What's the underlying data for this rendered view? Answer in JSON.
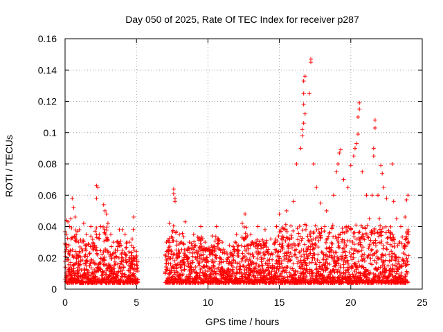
{
  "chart_data": {
    "type": "scatter",
    "title": "Day 050 of 2025, Rate Of TEC Index for receiver p287",
    "xlabel": "GPS time / hours",
    "ylabel": "ROTI / TECUs",
    "xlim": [
      0,
      25
    ],
    "ylim": [
      0,
      0.16
    ],
    "xticks": [
      0,
      5,
      10,
      15,
      20,
      25
    ],
    "yticks": [
      0,
      0.02,
      0.04,
      0.06,
      0.08,
      0.1,
      0.12,
      0.14,
      0.16
    ],
    "xtick_labels": [
      "0",
      "5",
      "10",
      "15",
      "20",
      "25"
    ],
    "ytick_labels": [
      "0",
      "0.02",
      "0.04",
      "0.06",
      "0.08",
      "0.1",
      "0.12",
      "0.14",
      "0.16"
    ],
    "grid": true,
    "marker": "+",
    "color": "#ff0000",
    "data_gaps_hours": [
      [
        5.1,
        7.0
      ]
    ],
    "series": [
      {
        "name": "ROTI",
        "points": [
          [
            0.1,
            0.044
          ],
          [
            0.2,
            0.043
          ],
          [
            0.3,
            0.04
          ],
          [
            0.4,
            0.045
          ],
          [
            0.5,
            0.058
          ],
          [
            0.6,
            0.052
          ],
          [
            0.7,
            0.046
          ],
          [
            0.9,
            0.037
          ],
          [
            1.0,
            0.038
          ],
          [
            1.3,
            0.042
          ],
          [
            1.5,
            0.035
          ],
          [
            1.8,
            0.04
          ],
          [
            2.1,
            0.037
          ],
          [
            2.2,
            0.058
          ],
          [
            2.2,
            0.066
          ],
          [
            2.3,
            0.065
          ],
          [
            2.5,
            0.04
          ],
          [
            2.7,
            0.054
          ],
          [
            2.8,
            0.05
          ],
          [
            2.9,
            0.048
          ],
          [
            3.0,
            0.042
          ],
          [
            3.2,
            0.035
          ],
          [
            3.4,
            0.03
          ],
          [
            3.8,
            0.038
          ],
          [
            4.0,
            0.038
          ],
          [
            4.2,
            0.035
          ],
          [
            4.5,
            0.03
          ],
          [
            4.7,
            0.032
          ],
          [
            4.8,
            0.046
          ],
          [
            5.0,
            0.024
          ],
          [
            7.1,
            0.03
          ],
          [
            7.3,
            0.042
          ],
          [
            7.6,
            0.064
          ],
          [
            7.6,
            0.061
          ],
          [
            7.7,
            0.058
          ],
          [
            7.7,
            0.056
          ],
          [
            8.0,
            0.035
          ],
          [
            8.4,
            0.043
          ],
          [
            8.7,
            0.03
          ],
          [
            9.0,
            0.035
          ],
          [
            9.5,
            0.04
          ],
          [
            9.8,
            0.03
          ],
          [
            10.3,
            0.034
          ],
          [
            10.6,
            0.04
          ],
          [
            11.0,
            0.03
          ],
          [
            11.5,
            0.028
          ],
          [
            12.0,
            0.035
          ],
          [
            12.4,
            0.042
          ],
          [
            12.6,
            0.048
          ],
          [
            13.0,
            0.035
          ],
          [
            13.5,
            0.04
          ],
          [
            14.0,
            0.038
          ],
          [
            14.4,
            0.032
          ],
          [
            14.8,
            0.04
          ],
          [
            15.0,
            0.048
          ],
          [
            15.5,
            0.05
          ],
          [
            16.0,
            0.056
          ],
          [
            16.2,
            0.08
          ],
          [
            16.5,
            0.09
          ],
          [
            16.6,
            0.098
          ],
          [
            16.6,
            0.102
          ],
          [
            16.7,
            0.106
          ],
          [
            16.8,
            0.112
          ],
          [
            16.7,
            0.118
          ],
          [
            16.7,
            0.125
          ],
          [
            16.7,
            0.133
          ],
          [
            16.8,
            0.136
          ],
          [
            17.1,
            0.125
          ],
          [
            17.2,
            0.145
          ],
          [
            17.2,
            0.147
          ],
          [
            17.4,
            0.08
          ],
          [
            17.6,
            0.065
          ],
          [
            17.9,
            0.055
          ],
          [
            18.3,
            0.05
          ],
          [
            18.8,
            0.06
          ],
          [
            19.0,
            0.075
          ],
          [
            19.1,
            0.08
          ],
          [
            19.2,
            0.087
          ],
          [
            19.3,
            0.089
          ],
          [
            19.5,
            0.07
          ],
          [
            19.8,
            0.065
          ],
          [
            20.0,
            0.079
          ],
          [
            20.2,
            0.085
          ],
          [
            20.3,
            0.09
          ],
          [
            20.4,
            0.093
          ],
          [
            20.5,
            0.099
          ],
          [
            20.5,
            0.11
          ],
          [
            20.6,
            0.115
          ],
          [
            20.6,
            0.119
          ],
          [
            20.8,
            0.075
          ],
          [
            21.1,
            0.06
          ],
          [
            21.3,
            0.045
          ],
          [
            21.5,
            0.06
          ],
          [
            21.6,
            0.085
          ],
          [
            21.6,
            0.09
          ],
          [
            21.7,
            0.103
          ],
          [
            21.7,
            0.108
          ],
          [
            21.9,
            0.06
          ],
          [
            22.0,
            0.045
          ],
          [
            22.1,
            0.079
          ],
          [
            22.2,
            0.074
          ],
          [
            22.3,
            0.065
          ],
          [
            22.5,
            0.058
          ],
          [
            22.9,
            0.08
          ],
          [
            23.0,
            0.056
          ],
          [
            23.2,
            0.045
          ],
          [
            23.5,
            0.04
          ],
          [
            23.8,
            0.046
          ],
          [
            23.9,
            0.057
          ],
          [
            24.0,
            0.06
          ]
        ]
      }
    ]
  }
}
